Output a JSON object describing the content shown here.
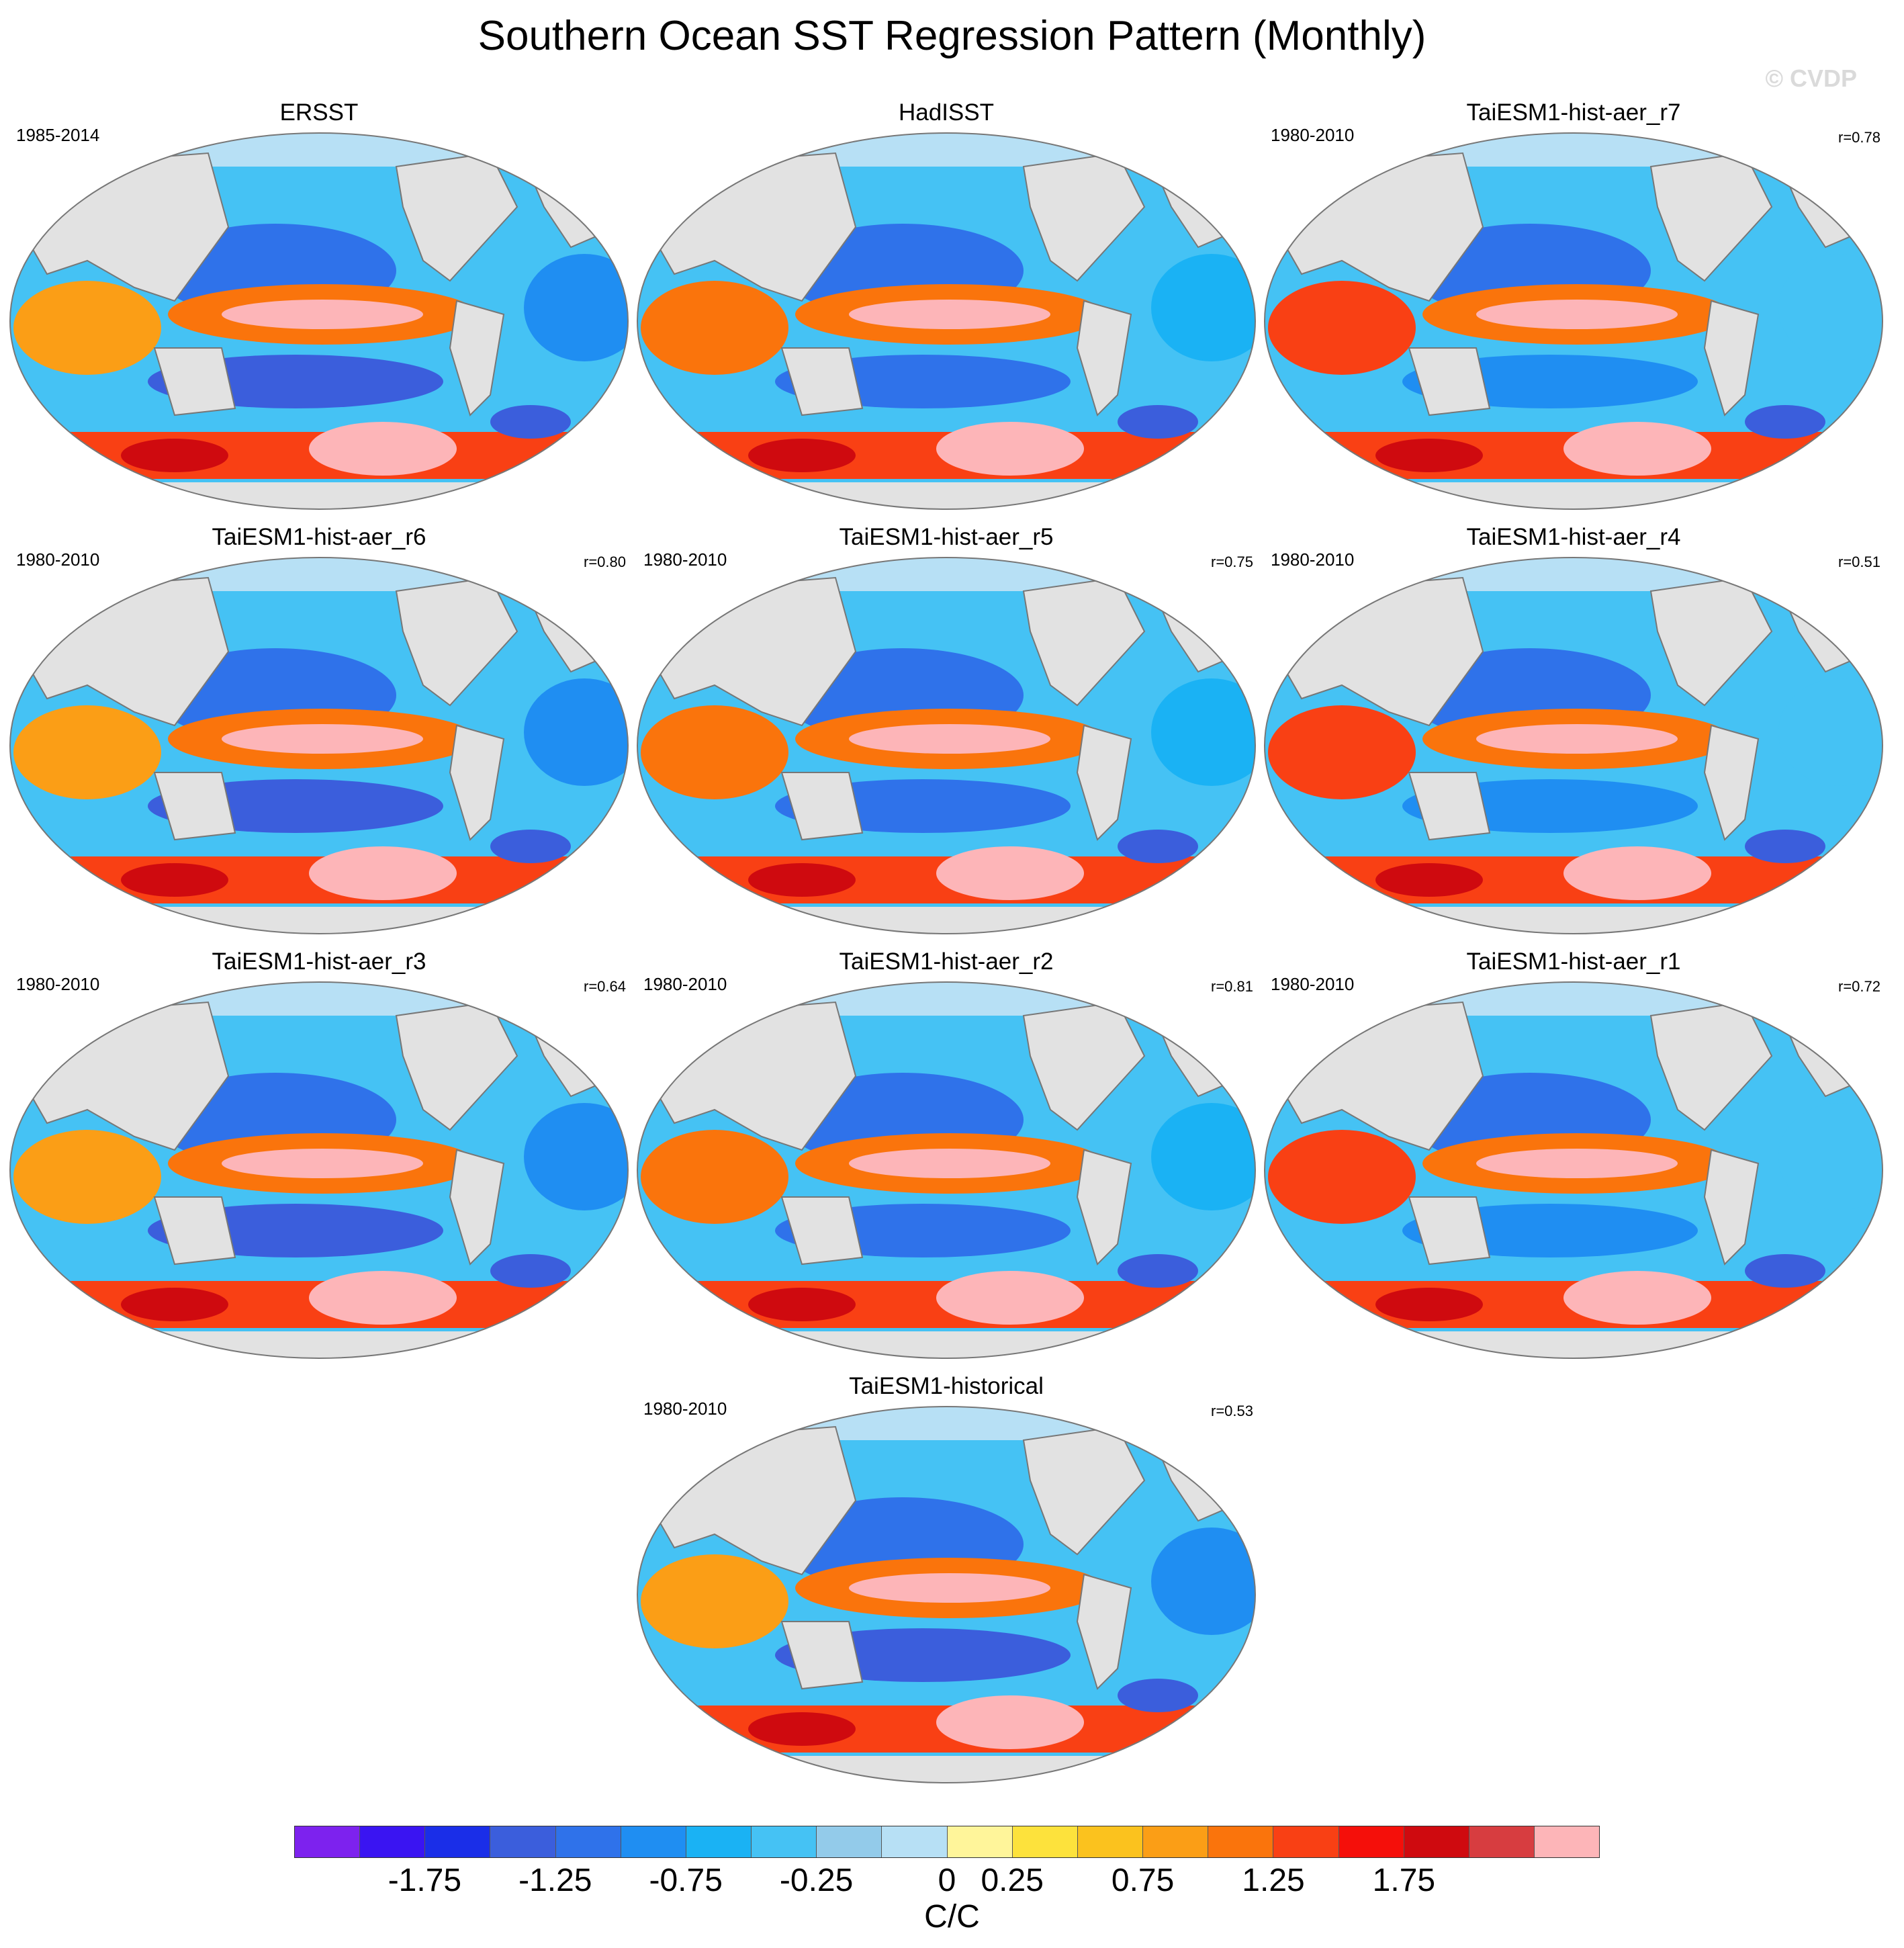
{
  "title": "Southern Ocean SST Regression Pattern (Monthly)",
  "watermark": "© CVDP",
  "panels": [
    {
      "title": "ERSST",
      "period": "1985-2014",
      "r": ""
    },
    {
      "title": "HadISST",
      "period": "",
      "r": ""
    },
    {
      "title": "TaiESM1-hist-aer_r7",
      "period": "1980-2010",
      "r": "r=0.78"
    },
    {
      "title": "TaiESM1-hist-aer_r6",
      "period": "1980-2010",
      "r": "r=0.80"
    },
    {
      "title": "TaiESM1-hist-aer_r5",
      "period": "1980-2010",
      "r": "r=0.75"
    },
    {
      "title": "TaiESM1-hist-aer_r4",
      "period": "1980-2010",
      "r": "r=0.51"
    },
    {
      "title": "TaiESM1-hist-aer_r3",
      "period": "1980-2010",
      "r": "r=0.64"
    },
    {
      "title": "TaiESM1-hist-aer_r2",
      "period": "1980-2010",
      "r": "r=0.81"
    },
    {
      "title": "TaiESM1-hist-aer_r1",
      "period": "1980-2010",
      "r": "r=0.72"
    },
    {
      "title": "TaiESM1-historical",
      "period": "1980-2010",
      "r": "r=0.53"
    }
  ],
  "colorbar": {
    "colors": [
      "#7d22ee",
      "#3a14f2",
      "#1a2ee8",
      "#3b5edc",
      "#2f72ea",
      "#1f8ef2",
      "#1ab2f4",
      "#45c2f4",
      "#93cbea",
      "#b7e0f5",
      "#fff59a",
      "#fde23c",
      "#fbc21e",
      "#fb9e16",
      "#fa740c",
      "#f94014",
      "#f50f0a",
      "#cf0a0f",
      "#d73d40",
      "#fdb5b8"
    ],
    "tick_labels": [
      "-1.75",
      "-1.25",
      "-0.75",
      "-0.25",
      "0",
      "0.25",
      "0.75",
      "1.25",
      "1.75"
    ],
    "units": "C/C"
  },
  "map_colors": {
    "land": "#e2e2e2",
    "coast": "#777777",
    "ocean_neg": "#3f86ea",
    "ocean_pos": "#fb9e16"
  }
}
